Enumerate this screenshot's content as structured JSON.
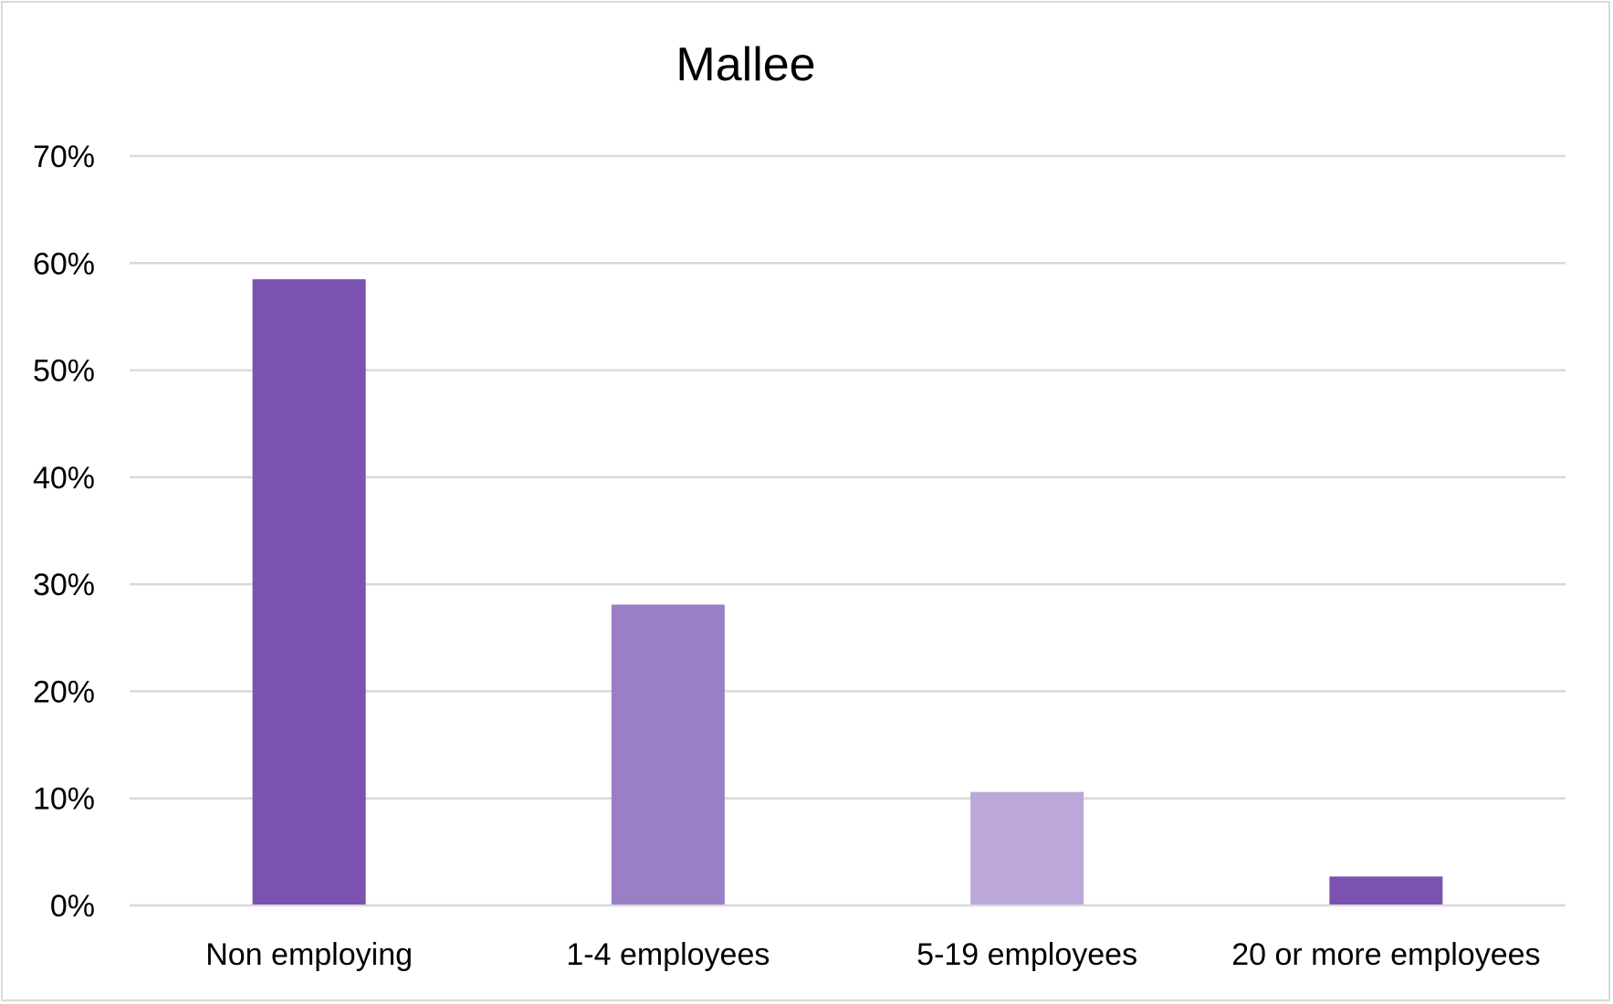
{
  "chart_data": {
    "type": "bar",
    "title": "Mallee",
    "xlabel": "",
    "ylabel": "",
    "categories": [
      "Non employing",
      "1-4 employees",
      "5-19 employees",
      "20 or more employees"
    ],
    "values": [
      58.5,
      28.1,
      10.6,
      2.7
    ],
    "value_unit": "%",
    "ylim": [
      0,
      70
    ],
    "yticks": [
      0,
      10,
      20,
      30,
      40,
      50,
      60,
      70
    ],
    "ytick_labels": [
      "0%",
      "10%",
      "20%",
      "30%",
      "40%",
      "50%",
      "60%",
      "70%"
    ],
    "grid": true,
    "legend": "none",
    "colors": [
      "#7B52B0",
      "#9B7FC6",
      "#BBA7D8",
      "#7B52B0"
    ],
    "gridline_color": "#d9d9d9"
  }
}
